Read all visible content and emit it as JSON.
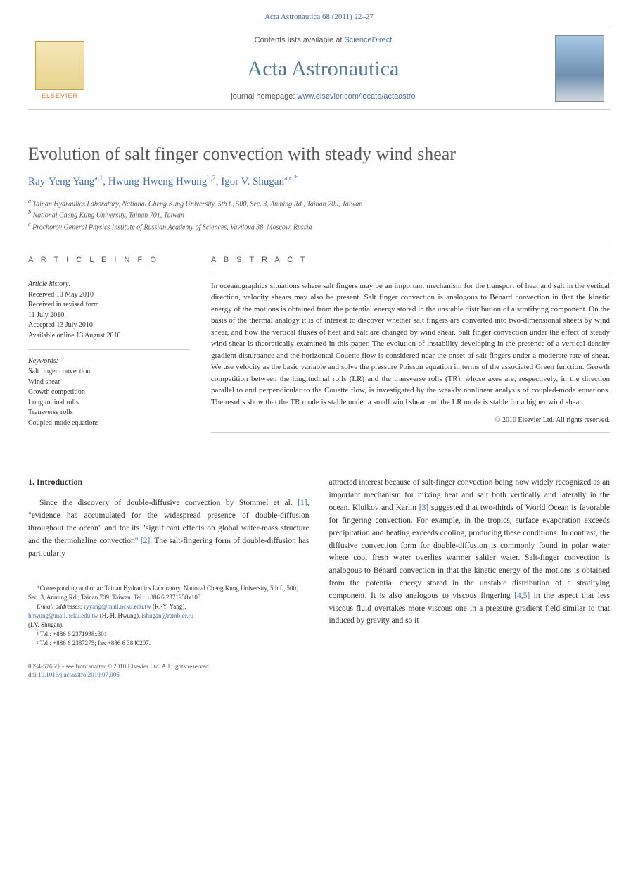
{
  "header": {
    "citation": "Acta Astronautica 68 (2011) 22–27",
    "contents_prefix": "Contents lists available at ",
    "contents_link": "ScienceDirect",
    "journal_name": "Acta Astronautica",
    "homepage_prefix": "journal homepage: ",
    "homepage_link": "www.elsevier.com/locate/actaastro",
    "publisher": "ELSEVIER"
  },
  "article": {
    "title": "Evolution of salt finger convection with steady wind shear",
    "authors_html": "Ray-Yeng Yang",
    "author1": "Ray-Yeng Yang",
    "author1_sup": "a,1",
    "author2": "Hwung-Hweng Hwung",
    "author2_sup": "b,2",
    "author3": "Igor V. Shugan",
    "author3_sup": "a,c,*",
    "affiliations": [
      {
        "sup": "a",
        "text": "Tainan Hydraulics Laboratory, National Cheng Kung University, 5th f., 500, Sec. 3, Anming Rd., Tainan 709, Taiwan"
      },
      {
        "sup": "b",
        "text": "National Cheng Kung University, Tainan 701, Taiwan"
      },
      {
        "sup": "c",
        "text": "Prochorov General Physics Institute of Russian Academy of Sciences, Vavilova 38, Moscow, Russia"
      }
    ]
  },
  "info": {
    "heading": "A R T I C L E   I N F O",
    "history_heading": "Article history:",
    "history": [
      "Received 10 May 2010",
      "Received in revised form",
      "11 July 2010",
      "Accepted 13 July 2010",
      "Available online 13 August 2010"
    ],
    "keywords_heading": "Keywords:",
    "keywords": [
      "Salt finger convection",
      "Wind shear",
      "Growth competition",
      "Longitudinal rolls",
      "Transverse rolls",
      "Coupled-mode equations"
    ]
  },
  "abstract": {
    "heading": "A B S T R A C T",
    "text": "In oceanographics situations where salt fingers may be an important mechanism for the transport of heat and salt in the vertical direction, velocity shears may also be present. Salt finger convection is analogous to Bénard convection in that the kinetic energy of the motions is obtained from the potential energy stored in the unstable distribution of a stratifying component. On the basis of the thermal analogy it is of interest to discover whether salt fingers are converted into two-dimensional sheets by wind shear, and how the vertical fluxes of heat and salt are changed by wind shear. Salt finger convection under the effect of steady wind shear is theoretically examined in this paper. The evolution of instability developing in the presence of a vertical density gradient disturbance and the horizontal Couette flow is considered near the onset of salt fingers under a moderate rate of shear. We use velocity as the basic variable and solve the pressure Poisson equation in terms of the associated Green function. Growth competition between the longitudinal rolls (LR) and the transverse rolls (TR), whose axes are, respectively, in the direction parallel to and perpendicular to the Couette flow, is investigated by the weakly nonlinear analysis of coupled-mode equations. The results show that the TR mode is stable under a small wind shear and the LR mode is stable for a higher wind shear.",
    "copyright": "© 2010 Elsevier Ltd. All rights reserved."
  },
  "body": {
    "section_heading": "1.  Introduction",
    "col1_para": "Since the discovery of double-diffusive convection by Stommel et al. [1], \"evidence has accumulated for the widespread presence of double-diffusion throughout the ocean\" and for its \"significant effects on global water-mass structure and the thermohaline convection\" [2]. The salt-fingering form of double-diffusion has particularly",
    "col2_para": "attracted interest because of salt-finger convection being now widely recognized as an important mechanism for mixing heat and salt both vertically and laterally in the ocean. Kluikov and Karlin [3] suggested that two-thirds of World Ocean is favorable for fingering convection. For example, in the tropics, surface evaporation exceeds precipitation and heating exceeds cooling, producing these conditions. In contrast, the diffusive convection form for double-diffusion is commonly found in polar water where cool fresh water overlies warmer saltier water. Salt-finger convection is analogous to Bénard convection in that the kinetic energy of the motions is obtained from the potential energy stored in the unstable distribution of a stratifying component. It is also analogous to viscous fingering [4,5] in the aspect that less viscous fluid overtakes more viscous one in a pressure gradient field similar to that induced by gravity and so it",
    "ref1": "[1]",
    "ref2": "[2]",
    "ref3": "[3]",
    "ref45": "[4,5]"
  },
  "footnotes": {
    "corresponding": "*Corresponding author at: Tainan Hydraulics Laboratory, National Cheng Kung University, 5th f., 500, Sec. 3, Anming Rd., Tainan 709, Taiwan. Tel.: +886 6 2371938x103.",
    "emails_label": "E-mail addresses:",
    "email1": "ryyang@mail.ncku.edu.tw",
    "email1_name": " (R.-Y. Yang),",
    "email2": "hhwung@mail.ncku.edu.tw",
    "email2_name": " (H.-H. Hwung), ",
    "email3": "ishugan@rambler.ru",
    "email3_name": "(I.V. Shugan).",
    "fn1": "¹ Tel.: +886 6 2371938x301.",
    "fn2": "² Tel.: +886 6 2387275; fax +886 6 3840207."
  },
  "footer": {
    "line1": "0094-5765/$ - see front matter © 2010 Elsevier Ltd. All rights reserved.",
    "doi_prefix": "doi:",
    "doi": "10.1016/j.actaastro.2010.07.006"
  }
}
